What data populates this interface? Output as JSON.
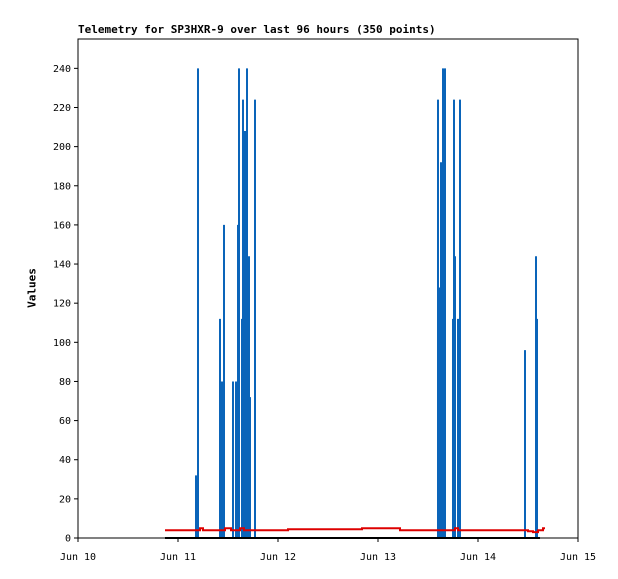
{
  "chart_data": {
    "type": "line",
    "title": "Telemetry for SP3HXR-9 over last 96 hours (350 points)",
    "xlabel": "",
    "ylabel": "Values",
    "xlim": [
      "Jun 10",
      "Jun 15"
    ],
    "ylim": [
      0,
      255
    ],
    "x_tick_labels": [
      "Jun 10",
      "Jun 11",
      "Jun 12",
      "Jun 13",
      "Jun 14",
      "Jun 15"
    ],
    "y_ticks": [
      0,
      20,
      40,
      60,
      80,
      100,
      120,
      140,
      160,
      180,
      200,
      220,
      240
    ],
    "grid": false,
    "legend": "none",
    "colors": {
      "spikes": "#0a64b9",
      "baseline": "#dd0000",
      "zero": "#000000",
      "frame": "#000000"
    },
    "series": [
      {
        "kind": "spikes",
        "points": [
          {
            "day": 11.18,
            "value": 32
          },
          {
            "day": 11.2,
            "value": 240
          },
          {
            "day": 11.42,
            "value": 112
          },
          {
            "day": 11.44,
            "value": 80
          },
          {
            "day": 11.46,
            "value": 160
          },
          {
            "day": 11.55,
            "value": 80
          },
          {
            "day": 11.58,
            "value": 80
          },
          {
            "day": 11.6,
            "value": 160
          },
          {
            "day": 11.61,
            "value": 240
          },
          {
            "day": 11.64,
            "value": 112
          },
          {
            "day": 11.65,
            "value": 224
          },
          {
            "day": 11.67,
            "value": 208
          },
          {
            "day": 11.69,
            "value": 240
          },
          {
            "day": 11.71,
            "value": 144
          },
          {
            "day": 11.72,
            "value": 72
          },
          {
            "day": 11.77,
            "value": 224
          },
          {
            "day": 13.6,
            "value": 224
          },
          {
            "day": 13.61,
            "value": 32
          },
          {
            "day": 13.62,
            "value": 128
          },
          {
            "day": 13.63,
            "value": 192
          },
          {
            "day": 13.65,
            "value": 240
          },
          {
            "day": 13.67,
            "value": 240
          },
          {
            "day": 13.75,
            "value": 112
          },
          {
            "day": 13.76,
            "value": 224
          },
          {
            "day": 13.77,
            "value": 144
          },
          {
            "day": 13.8,
            "value": 112
          },
          {
            "day": 13.82,
            "value": 224
          },
          {
            "day": 14.47,
            "value": 96
          },
          {
            "day": 14.58,
            "value": 144
          },
          {
            "day": 14.59,
            "value": 112
          }
        ]
      },
      {
        "kind": "line",
        "points": [
          {
            "day": 10.87,
            "value": 4
          },
          {
            "day": 11.2,
            "value": 4
          },
          {
            "day": 11.22,
            "value": 5
          },
          {
            "day": 11.25,
            "value": 4
          },
          {
            "day": 11.45,
            "value": 4
          },
          {
            "day": 11.47,
            "value": 5
          },
          {
            "day": 11.5,
            "value": 5
          },
          {
            "day": 11.53,
            "value": 4
          },
          {
            "day": 11.6,
            "value": 4
          },
          {
            "day": 11.62,
            "value": 5
          },
          {
            "day": 11.66,
            "value": 4
          },
          {
            "day": 12.08,
            "value": 4
          },
          {
            "day": 12.1,
            "value": 4.5
          },
          {
            "day": 12.82,
            "value": 4.5
          },
          {
            "day": 12.84,
            "value": 5
          },
          {
            "day": 13.2,
            "value": 5
          },
          {
            "day": 13.22,
            "value": 4
          },
          {
            "day": 13.75,
            "value": 4
          },
          {
            "day": 13.77,
            "value": 5
          },
          {
            "day": 13.8,
            "value": 4
          },
          {
            "day": 14.47,
            "value": 4
          },
          {
            "day": 14.5,
            "value": 3.5
          },
          {
            "day": 14.55,
            "value": 3
          },
          {
            "day": 14.6,
            "value": 4
          },
          {
            "day": 14.64,
            "value": 4
          },
          {
            "day": 14.65,
            "value": 5
          },
          {
            "day": 14.67,
            "value": 5
          }
        ]
      },
      {
        "kind": "zero-line",
        "points": [
          {
            "day": 10.87,
            "value": 0
          },
          {
            "day": 14.62,
            "value": 0
          }
        ]
      }
    ]
  }
}
